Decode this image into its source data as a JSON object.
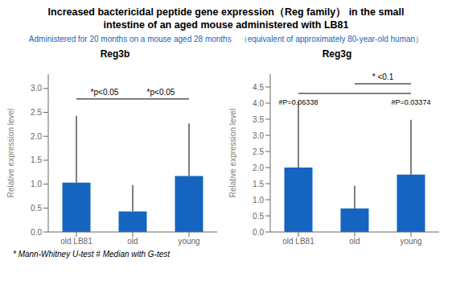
{
  "title": "Increased bactericidal peptide gene expression（Reg family） in the small\nintestine of an aged mouse administered with LB81",
  "subtitle": "Administered for 20 months on a mouse aged 28 months　（equivalent of approximately 80-year-old human）",
  "footnote": "* Mann-Whitney U-test    # Median with G-test",
  "chart_data": [
    {
      "type": "bar",
      "title": "Reg3b",
      "ylabel": "Relative expression level",
      "categories": [
        "old LB81",
        "old",
        "young"
      ],
      "values": [
        1.03,
        0.43,
        1.17
      ],
      "errors_upper": [
        1.4,
        0.55,
        1.1
      ],
      "ylim": [
        0,
        3.3
      ],
      "yticks": [
        {
          "value": 0,
          "label": "0.0"
        },
        0.5,
        {
          "value": 1,
          "label": "1.0"
        },
        1.5,
        {
          "value": 2,
          "label": "2.0"
        },
        2.5,
        {
          "value": 3,
          "label": "3.0"
        }
      ],
      "color": "#1565c0",
      "brackets": [
        {
          "from": "old LB81",
          "to": "old",
          "y": 2.78,
          "text": "*p<0.05"
        },
        {
          "from": "old",
          "to": "young",
          "y": 2.78,
          "text": "*p<0.05"
        }
      ]
    },
    {
      "type": "bar",
      "title": "Reg3g",
      "ylabel": "Relative expression level",
      "categories": [
        "old LB81",
        "old",
        "young"
      ],
      "values": [
        2.0,
        0.73,
        1.78
      ],
      "errors_upper": [
        2.05,
        0.7,
        1.7
      ],
      "ylim": [
        0,
        4.9
      ],
      "yticks": [
        {
          "value": 0,
          "label": "0.0"
        },
        0.5,
        {
          "value": 1,
          "label": "1.0"
        },
        1.5,
        {
          "value": 2,
          "label": "2.0"
        },
        2.5,
        {
          "value": 3,
          "label": "3.0"
        },
        3.5,
        {
          "value": 4,
          "label": "4.0"
        },
        4.5
      ],
      "color": "#1565c0",
      "brackets": [
        {
          "from": "old",
          "to": "young",
          "y": 4.6,
          "text": "* <0.1"
        },
        {
          "from": "old LB81",
          "to": "young",
          "y": 4.3
        }
      ],
      "annotations": [
        {
          "text": "#P=0.06338",
          "x": "old LB81",
          "y": 4.25
        },
        {
          "text": "#P=0.03374",
          "x": "young",
          "y": 4.25
        }
      ]
    }
  ]
}
